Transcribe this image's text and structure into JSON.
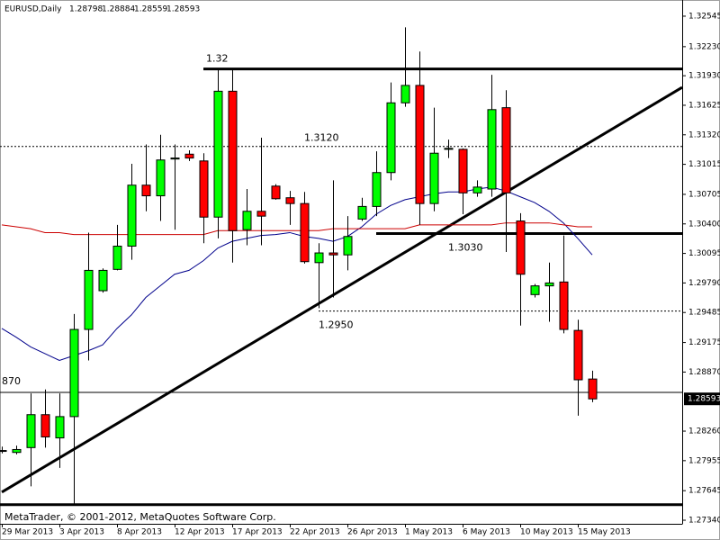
{
  "chart_data": {
    "type": "candlestick",
    "title": "EURUSD,Daily",
    "copyright": "MetaTrader, © 2001-2012, MetaQuotes Software Corp.",
    "categories": [
      "29 Mar 2013",
      null,
      null,
      null,
      "3 Apr 2013",
      null,
      null,
      null,
      "8 Apr 2013",
      null,
      null,
      null,
      "12 Apr 2013",
      null,
      null,
      null,
      "17 Apr 2013",
      null,
      null,
      null,
      "22 Apr 2013",
      null,
      null,
      null,
      "26 Apr 2013",
      null,
      null,
      null,
      "1 May 2013",
      null,
      null,
      null,
      "6 May 2013",
      null,
      null,
      null,
      "10 May 2013",
      null,
      null,
      null,
      "15 May 2013",
      null
    ],
    "open": [
      1.2806,
      1.2804,
      1.2809,
      1.2843,
      1.2819,
      1.2841,
      1.2931,
      1.2971,
      1.2993,
      1.3017,
      1.308,
      1.3069,
      1.3107,
      1.3112,
      1.3105,
      1.3047,
      1.3177,
      1.3034,
      1.3053,
      1.3079,
      1.3067,
      1.3061,
      1.3,
      1.301,
      1.3008,
      1.3045,
      1.3058,
      1.3093,
      1.3165,
      1.3183,
      1.3061,
      1.3117,
      1.3117,
      1.3072,
      1.3076,
      1.316,
      1.3043,
      1.2967,
      1.2976,
      1.298,
      1.293,
      1.28798
    ],
    "high": [
      1.281,
      1.2811,
      1.2865,
      1.2869,
      1.2865,
      1.2947,
      1.3031,
      1.2994,
      1.3039,
      1.3102,
      1.3122,
      1.3132,
      1.3122,
      1.3116,
      1.3113,
      1.32,
      1.32,
      1.3076,
      1.3129,
      1.3081,
      1.3074,
      1.3073,
      1.302,
      1.3085,
      1.3048,
      1.3067,
      1.3115,
      1.3186,
      1.3243,
      1.3218,
      1.316,
      1.3127,
      1.3118,
      1.3085,
      1.3194,
      1.3178,
      1.3051,
      1.2978,
      1.3,
      1.3028,
      1.2941,
      1.28884
    ],
    "low": [
      1.2803,
      1.2802,
      1.2769,
      1.2809,
      1.2788,
      1.275,
      1.2899,
      1.2969,
      1.2992,
      1.3003,
      1.3053,
      1.3043,
      1.3034,
      1.3105,
      1.302,
      1.3025,
      1.3,
      1.3018,
      1.3018,
      1.3065,
      1.3039,
      1.2999,
      1.2953,
      1.2964,
      1.2992,
      1.3043,
      1.3048,
      1.3085,
      1.3161,
      1.3039,
      1.3053,
      1.3108,
      1.305,
      1.3068,
      1.3068,
      1.3011,
      1.2935,
      1.2964,
      1.2939,
      1.2927,
      1.2842,
      1.28559
    ],
    "close": [
      1.2806,
      1.2807,
      1.2843,
      1.282,
      1.2841,
      1.2931,
      1.2992,
      1.2992,
      1.3017,
      1.308,
      1.3069,
      1.3106,
      1.3108,
      1.3108,
      1.3047,
      1.3177,
      1.3033,
      1.3053,
      1.3048,
      1.3066,
      1.3061,
      1.3001,
      1.301,
      1.3008,
      1.3027,
      1.3058,
      1.3093,
      1.3165,
      1.3183,
      1.3061,
      1.3113,
      1.3118,
      1.3072,
      1.3078,
      1.3158,
      1.3072,
      1.2988,
      1.2976,
      1.2979,
      1.2931,
      1.2879,
      1.28593
    ],
    "up_color": "#00ff00",
    "down_color": "#ff0000",
    "moving_averages": [
      {
        "color": "#00008b",
        "values": [
          1.2932,
          1.2923,
          1.2913,
          1.2906,
          1.2899,
          1.2904,
          1.2909,
          1.2915,
          1.2932,
          1.2946,
          1.2964,
          1.2976,
          1.2988,
          1.2992,
          1.3002,
          1.3015,
          1.3022,
          1.3025,
          1.3028,
          1.3029,
          1.3031,
          1.3027,
          1.3025,
          1.3022,
          1.3027,
          1.3037,
          1.305,
          1.3059,
          1.3065,
          1.3068,
          1.3071,
          1.3073,
          1.3073,
          1.3076,
          1.3078,
          1.3074,
          1.3068,
          1.3062,
          1.3053,
          1.3041,
          1.3025,
          1.3008
        ]
      },
      {
        "color": "#cc0000",
        "values": [
          1.3039,
          1.3037,
          1.3035,
          1.3031,
          1.3031,
          1.3029,
          1.3029,
          1.3029,
          1.3029,
          1.3029,
          1.3029,
          1.3029,
          1.3029,
          1.3029,
          1.3029,
          1.3033,
          1.3033,
          1.3033,
          1.3033,
          1.3033,
          1.3033,
          1.3033,
          1.3033,
          1.3035,
          1.3035,
          1.3035,
          1.3035,
          1.3035,
          1.3035,
          1.3039,
          1.3039,
          1.3039,
          1.3039,
          1.3039,
          1.3039,
          1.3041,
          1.3041,
          1.3041,
          1.3041,
          1.3039,
          1.3037,
          1.3037
        ]
      }
    ],
    "levels": [
      {
        "value": 1.32,
        "label": "1.32",
        "from": 14,
        "style": "thick"
      },
      {
        "value": 1.312,
        "label": "1.3120",
        "from": 0,
        "style": "dotted"
      },
      {
        "value": 1.303,
        "label": "1.3030",
        "from": 26,
        "style": "thick"
      },
      {
        "value": 1.295,
        "label": "1.2950",
        "from": 22,
        "style": "dotted"
      },
      {
        "value": 1.2866,
        "from": 0,
        "style": "thin"
      },
      {
        "value": 1.275,
        "from": 0,
        "style": "thick"
      }
    ],
    "price_line_text": "870",
    "trendline": {
      "x": [
        0,
        47.25
      ],
      "y": [
        1.2763,
        1.3181
      ]
    },
    "ylim": [
      1.27303,
      1.32712
    ],
    "yticks": [
      1.32545,
      {
        "value": 1.3223,
        "label": "1.32230"
      },
      {
        "value": 1.3193,
        "label": "1.31930"
      },
      1.31625,
      {
        "value": 1.3132,
        "label": "1.31320"
      },
      1.31015,
      1.30705,
      {
        "value": 1.304,
        "label": "1.30400"
      },
      1.30095,
      {
        "value": 1.2979,
        "label": "1.29790"
      },
      1.29485,
      1.29175,
      {
        "value": 1.2887,
        "label": "1.28870"
      },
      {
        "value": 1.2826,
        "label": "1.28260"
      },
      1.27955,
      1.27645,
      {
        "value": 1.2734,
        "label": "1.27340"
      }
    ]
  }
}
